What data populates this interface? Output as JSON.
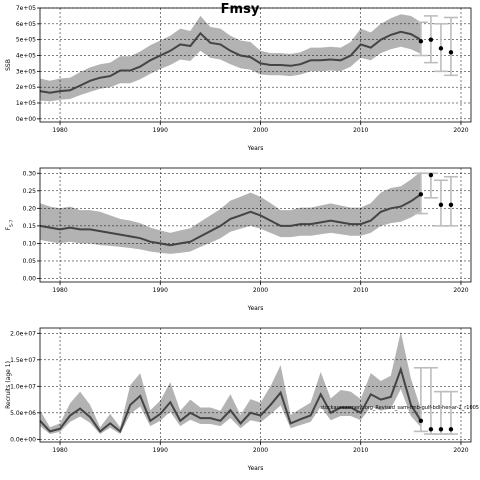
{
  "title": "Fmsy",
  "annotation": "stockassessment.org_Revised_sam-tmb-gulf-bdl-her-ar-2_r1005",
  "colors": {
    "band": "#b3b3b3",
    "line": "#444444",
    "point": "#000000",
    "errorbar": "#bdbdbd",
    "grid": "#000000"
  },
  "chart_data": [
    {
      "type": "line",
      "panel": "ssb",
      "xlabel": "Years",
      "ylabel": "SSB",
      "xlim": [
        1978,
        2021
      ],
      "ylim": [
        -20000,
        700000
      ],
      "xticks": [
        1980,
        1990,
        2000,
        2010,
        2020
      ],
      "xtick_labels": [
        "1980",
        "1990",
        "2000",
        "2010",
        "2020"
      ],
      "yticks": [
        0,
        100000,
        200000,
        300000,
        400000,
        500000,
        600000,
        700000
      ],
      "ytick_labels": [
        "0e+00",
        "1e+05",
        "2e+05",
        "3e+05",
        "4e+05",
        "5e+05",
        "6e+05",
        "7e+05"
      ],
      "grid": true,
      "x": [
        1978,
        1979,
        1980,
        1981,
        1982,
        1983,
        1984,
        1985,
        1986,
        1987,
        1988,
        1989,
        1990,
        1991,
        1992,
        1993,
        1994,
        1995,
        1996,
        1997,
        1998,
        1999,
        2000,
        2001,
        2002,
        2003,
        2004,
        2005,
        2006,
        2007,
        2008,
        2009,
        2010,
        2011,
        2012,
        2013,
        2014,
        2015,
        2016
      ],
      "values": [
        175000,
        165000,
        175000,
        180000,
        210000,
        240000,
        260000,
        270000,
        305000,
        305000,
        330000,
        370000,
        400000,
        430000,
        470000,
        460000,
        540000,
        480000,
        470000,
        430000,
        400000,
        390000,
        350000,
        340000,
        340000,
        335000,
        345000,
        370000,
        370000,
        375000,
        370000,
        400000,
        470000,
        450000,
        500000,
        530000,
        550000,
        535000,
        500000
      ],
      "lower": [
        115000,
        110000,
        120000,
        125000,
        150000,
        170000,
        190000,
        200000,
        225000,
        225000,
        250000,
        285000,
        315000,
        340000,
        375000,
        365000,
        430000,
        385000,
        375000,
        345000,
        320000,
        310000,
        280000,
        275000,
        275000,
        270000,
        280000,
        300000,
        300000,
        305000,
        300000,
        330000,
        385000,
        370000,
        415000,
        440000,
        455000,
        440000,
        410000
      ],
      "upper": [
        255000,
        240000,
        255000,
        260000,
        295000,
        325000,
        345000,
        355000,
        395000,
        395000,
        425000,
        465000,
        495000,
        525000,
        570000,
        555000,
        650000,
        580000,
        570000,
        525000,
        495000,
        485000,
        430000,
        415000,
        415000,
        410000,
        420000,
        450000,
        450000,
        455000,
        450000,
        485000,
        570000,
        545000,
        600000,
        635000,
        660000,
        650000,
        610000
      ],
      "forecast_x": [
        2016,
        2017,
        2018,
        2019
      ],
      "forecast_values": [
        490000,
        500000,
        445000,
        420000
      ],
      "forecast_lower": [
        400000,
        355000,
        300000,
        275000
      ],
      "forecast_upper": [
        610000,
        650000,
        600000,
        640000
      ]
    },
    {
      "type": "line",
      "panel": "f",
      "xlabel": "Years",
      "ylabel": "F5-7",
      "ylabel_main": "F",
      "ylabel_sub": "5-7",
      "xlim": [
        1978,
        2021
      ],
      "ylim": [
        -0.01,
        0.315
      ],
      "xticks": [
        1980,
        1990,
        2000,
        2010,
        2020
      ],
      "xtick_labels": [
        "1980",
        "1990",
        "2000",
        "2010",
        "2020"
      ],
      "yticks": [
        0.0,
        0.05,
        0.1,
        0.15,
        0.2,
        0.25,
        0.3
      ],
      "ytick_labels": [
        "0.00",
        "0.05",
        "0.10",
        "0.15",
        "0.20",
        "0.25",
        "0.30"
      ],
      "grid": true,
      "x": [
        1978,
        1979,
        1980,
        1981,
        1982,
        1983,
        1984,
        1985,
        1986,
        1987,
        1988,
        1989,
        1990,
        1991,
        1992,
        1993,
        1994,
        1995,
        1996,
        1997,
        1998,
        1999,
        2000,
        2001,
        2002,
        2003,
        2004,
        2005,
        2006,
        2007,
        2008,
        2009,
        2010,
        2011,
        2012,
        2013,
        2014,
        2015,
        2016
      ],
      "values": [
        0.15,
        0.145,
        0.14,
        0.145,
        0.14,
        0.14,
        0.135,
        0.13,
        0.125,
        0.12,
        0.115,
        0.105,
        0.1,
        0.095,
        0.1,
        0.105,
        0.12,
        0.135,
        0.15,
        0.17,
        0.18,
        0.19,
        0.18,
        0.165,
        0.15,
        0.15,
        0.155,
        0.155,
        0.16,
        0.165,
        0.16,
        0.155,
        0.155,
        0.165,
        0.19,
        0.2,
        0.205,
        0.22,
        0.24
      ],
      "lower": [
        0.11,
        0.105,
        0.1,
        0.105,
        0.1,
        0.1,
        0.095,
        0.093,
        0.09,
        0.087,
        0.083,
        0.077,
        0.073,
        0.07,
        0.073,
        0.077,
        0.09,
        0.102,
        0.115,
        0.133,
        0.142,
        0.15,
        0.142,
        0.13,
        0.118,
        0.118,
        0.122,
        0.122,
        0.126,
        0.13,
        0.126,
        0.122,
        0.122,
        0.13,
        0.15,
        0.158,
        0.162,
        0.174,
        0.19
      ],
      "upper": [
        0.215,
        0.205,
        0.2,
        0.205,
        0.195,
        0.195,
        0.19,
        0.18,
        0.17,
        0.165,
        0.158,
        0.145,
        0.137,
        0.13,
        0.137,
        0.143,
        0.162,
        0.18,
        0.198,
        0.222,
        0.233,
        0.245,
        0.233,
        0.215,
        0.195,
        0.195,
        0.202,
        0.202,
        0.208,
        0.214,
        0.208,
        0.202,
        0.202,
        0.215,
        0.245,
        0.258,
        0.263,
        0.282,
        0.305
      ],
      "forecast_x": [
        2016,
        2017,
        2018,
        2019
      ],
      "forecast_values": [
        0.24,
        0.295,
        0.21,
        0.21
      ],
      "forecast_lower": [
        0.185,
        0.23,
        0.15,
        0.15
      ],
      "forecast_upper": [
        0.3,
        0.3,
        0.28,
        0.29
      ]
    },
    {
      "type": "line",
      "panel": "recruitment",
      "xlabel": "Years",
      "ylabel": "Recruits (age 1)",
      "xlim": [
        1978,
        2021
      ],
      "ylim": [
        -500000,
        21000000
      ],
      "xticks": [
        1980,
        1990,
        2000,
        2010,
        2020
      ],
      "xtick_labels": [
        "1980",
        "1990",
        "2000",
        "2010",
        "2020"
      ],
      "yticks": [
        0,
        5000000,
        10000000,
        15000000,
        20000000
      ],
      "ytick_labels": [
        "0.0e+00",
        "5.0e+06",
        "1.0e+07",
        "1.5e+07",
        "2.0e+07"
      ],
      "grid": true,
      "x": [
        1978,
        1979,
        1980,
        1981,
        1982,
        1983,
        1984,
        1985,
        1986,
        1987,
        1988,
        1989,
        1990,
        1991,
        1992,
        1993,
        1994,
        1995,
        1996,
        1997,
        1998,
        1999,
        2000,
        2001,
        2002,
        2003,
        2004,
        2005,
        2006,
        2007,
        2008,
        2009,
        2010,
        2011,
        2012,
        2013,
        2014,
        2015,
        2016
      ],
      "values": [
        3500000,
        1500000,
        2000000,
        4500000,
        5800000,
        4200000,
        1500000,
        3000000,
        1500000,
        6500000,
        8200000,
        3500000,
        4800000,
        7000000,
        3500000,
        5000000,
        4000000,
        4000000,
        3500000,
        5500000,
        3000000,
        5000000,
        4500000,
        6500000,
        8800000,
        3000000,
        3800000,
        4500000,
        8500000,
        5000000,
        6000000,
        6000000,
        5000000,
        8500000,
        7500000,
        8000000,
        13200000,
        6500000,
        3500000
      ],
      "lower": [
        2500000,
        1000000,
        1400000,
        3300000,
        4300000,
        3100000,
        1000000,
        2200000,
        1000000,
        4800000,
        6200000,
        2500000,
        3500000,
        5200000,
        2500000,
        3700000,
        2900000,
        2900000,
        2500000,
        4000000,
        2100000,
        3600000,
        3200000,
        4700000,
        6400000,
        2100000,
        2700000,
        3300000,
        6200000,
        3600000,
        4400000,
        4400000,
        3600000,
        6200000,
        5400000,
        5800000,
        9500000,
        4400000,
        2300000
      ],
      "upper": [
        5500000,
        2300000,
        3000000,
        6800000,
        9000000,
        6500000,
        2300000,
        4800000,
        2300000,
        10200000,
        12500000,
        5500000,
        7300000,
        10800000,
        5400000,
        7500000,
        6000000,
        6000000,
        5400000,
        8500000,
        4600000,
        7600000,
        6900000,
        10000000,
        14000000,
        4600000,
        5800000,
        6900000,
        12700000,
        7700000,
        9300000,
        9000000,
        7600000,
        12500000,
        11000000,
        12000000,
        20300000,
        11500000,
        5700000
      ],
      "forecast_x": [
        2016,
        2017,
        2018,
        2019
      ],
      "forecast_values": [
        3500000,
        1900000,
        1900000,
        1900000
      ],
      "forecast_lower": [
        1500000,
        1000000,
        1000000,
        1000000
      ],
      "forecast_upper": [
        13500000,
        13500000,
        9000000,
        9000000
      ]
    }
  ]
}
